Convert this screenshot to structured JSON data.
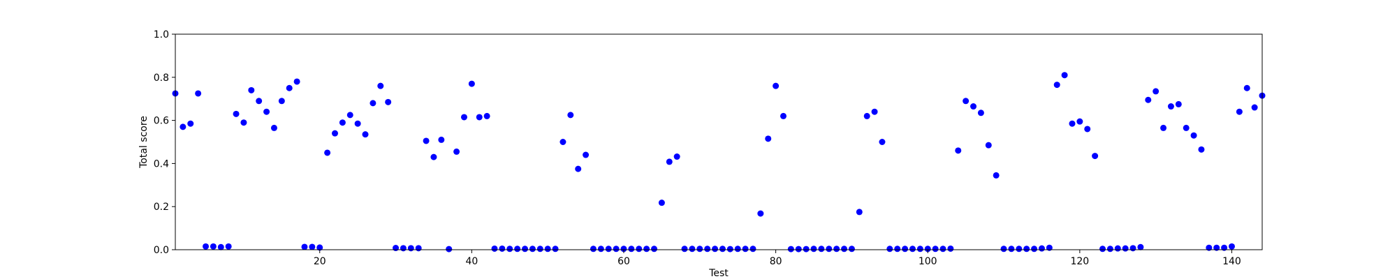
{
  "chart_data": {
    "type": "scatter",
    "xlabel": "Test",
    "ylabel": "Total score",
    "xlim": [
      1,
      144
    ],
    "ylim": [
      0.0,
      1.0
    ],
    "xticks": [
      20,
      40,
      60,
      80,
      100,
      120,
      140
    ],
    "yticks": [
      0.0,
      0.2,
      0.4,
      0.6,
      0.8,
      1.0
    ],
    "xtick_labels": [
      "20",
      "40",
      "60",
      "80",
      "100",
      "120",
      "140"
    ],
    "ytick_labels": [
      "0.0",
      "0.2",
      "0.4",
      "0.6",
      "0.8",
      "1.0"
    ],
    "grid": false,
    "marker_color": "#0000ff",
    "x": [
      1,
      2,
      3,
      4,
      5,
      6,
      7,
      8,
      9,
      10,
      11,
      12,
      13,
      14,
      15,
      16,
      17,
      18,
      19,
      20,
      21,
      22,
      23,
      24,
      25,
      26,
      27,
      28,
      29,
      30,
      31,
      32,
      33,
      34,
      35,
      36,
      37,
      38,
      39,
      40,
      41,
      42,
      43,
      44,
      45,
      46,
      47,
      48,
      49,
      50,
      51,
      52,
      53,
      54,
      55,
      56,
      57,
      58,
      59,
      60,
      61,
      62,
      63,
      64,
      65,
      66,
      67,
      68,
      69,
      70,
      71,
      72,
      73,
      74,
      75,
      76,
      77,
      78,
      79,
      80,
      81,
      82,
      83,
      84,
      85,
      86,
      87,
      88,
      89,
      90,
      91,
      92,
      93,
      94,
      95,
      96,
      97,
      98,
      99,
      100,
      101,
      102,
      103,
      104,
      105,
      106,
      107,
      108,
      109,
      110,
      111,
      112,
      113,
      114,
      115,
      116,
      117,
      118,
      119,
      120,
      121,
      122,
      123,
      124,
      125,
      126,
      127,
      128,
      129,
      130,
      131,
      132,
      133,
      134,
      135,
      136,
      137,
      138,
      139,
      140,
      141,
      142,
      143,
      144
    ],
    "y": [
      0.725,
      0.57,
      0.585,
      0.725,
      0.015,
      0.015,
      0.012,
      0.015,
      0.63,
      0.59,
      0.74,
      0.69,
      0.64,
      0.565,
      0.69,
      0.75,
      0.78,
      0.013,
      0.013,
      0.01,
      0.45,
      0.54,
      0.59,
      0.625,
      0.585,
      0.535,
      0.68,
      0.76,
      0.685,
      0.008,
      0.007,
      0.007,
      0.007,
      0.505,
      0.43,
      0.51,
      0.003,
      0.455,
      0.615,
      0.77,
      0.615,
      0.62,
      0.005,
      0.005,
      0.004,
      0.004,
      0.004,
      0.004,
      0.004,
      0.004,
      0.004,
      0.5,
      0.625,
      0.375,
      0.44,
      0.004,
      0.004,
      0.004,
      0.004,
      0.004,
      0.004,
      0.004,
      0.004,
      0.004,
      0.218,
      0.408,
      0.432,
      0.004,
      0.004,
      0.004,
      0.004,
      0.004,
      0.004,
      0.003,
      0.004,
      0.004,
      0.004,
      0.168,
      0.515,
      0.76,
      0.62,
      0.003,
      0.003,
      0.003,
      0.004,
      0.004,
      0.004,
      0.004,
      0.004,
      0.004,
      0.175,
      0.62,
      0.64,
      0.5,
      0.004,
      0.004,
      0.004,
      0.004,
      0.004,
      0.004,
      0.004,
      0.004,
      0.005,
      0.46,
      0.69,
      0.665,
      0.635,
      0.485,
      0.345,
      0.004,
      0.004,
      0.004,
      0.004,
      0.004,
      0.006,
      0.009,
      0.765,
      0.81,
      0.585,
      0.595,
      0.56,
      0.435,
      0.004,
      0.004,
      0.006,
      0.006,
      0.007,
      0.012,
      0.695,
      0.735,
      0.565,
      0.665,
      0.675,
      0.565,
      0.53,
      0.465,
      0.009,
      0.009,
      0.009,
      0.015,
      0.64,
      0.75,
      0.66,
      0.715
    ]
  }
}
